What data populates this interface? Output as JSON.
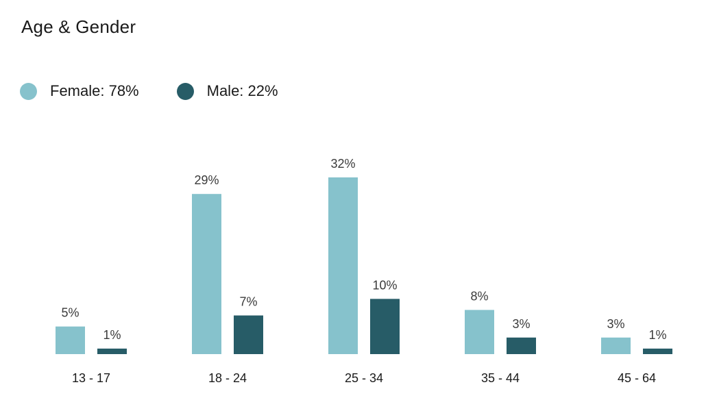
{
  "title": "Age & Gender",
  "legend": [
    {
      "label": "Female: 78%",
      "color": "#86c2cc"
    },
    {
      "label": "Male: 22%",
      "color": "#275c67"
    }
  ],
  "chart_data": {
    "type": "bar",
    "title": "Age & Gender",
    "xlabel": "",
    "ylabel": "",
    "categories": [
      "13 - 17",
      "18 - 24",
      "25 - 34",
      "35 - 44",
      "45 - 64"
    ],
    "series": [
      {
        "name": "Female",
        "color": "#86c2cc",
        "values": [
          5,
          29,
          32,
          8,
          3
        ],
        "labels": [
          "5%",
          "29%",
          "32%",
          "8%",
          "3%"
        ]
      },
      {
        "name": "Male",
        "color": "#275c67",
        "values": [
          1,
          7,
          10,
          3,
          1
        ],
        "labels": [
          "1%",
          "7%",
          "10%",
          "3%",
          "1%"
        ]
      }
    ],
    "ylim": [
      0,
      32
    ],
    "grid": false,
    "legend_position": "top-left"
  }
}
